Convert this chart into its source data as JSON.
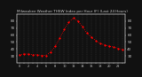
{
  "title": "Milwaukee Weather THSW Index per Hour (F) (Last 24 Hours)",
  "background_color": "#111111",
  "plot_background": "#111111",
  "line_color": "#ff0000",
  "grid_color": "#444444",
  "text_color": "#cccccc",
  "tick_label_color": "#cccccc",
  "hours": [
    0,
    1,
    2,
    3,
    4,
    5,
    6,
    7,
    8,
    9,
    10,
    11,
    12,
    13,
    14,
    15,
    16,
    17,
    18,
    19,
    20,
    21,
    22,
    23
  ],
  "values": [
    32,
    33,
    33,
    32,
    32,
    31,
    31,
    36,
    44,
    56,
    68,
    78,
    84,
    80,
    72,
    63,
    57,
    52,
    48,
    46,
    44,
    43,
    41,
    39
  ],
  "ylim_min": 20,
  "ylim_max": 90,
  "ytick_values": [
    30,
    40,
    50,
    60,
    70,
    80
  ],
  "ytick_right_values": [
    30,
    40,
    50,
    60,
    70,
    80
  ],
  "ylabel_fontsize": 3.0,
  "xlabel_fontsize": 2.5,
  "title_fontsize": 3.0,
  "marker_size": 1.2,
  "line_width": 0.6,
  "dpi": 100,
  "figw": 1.6,
  "figh": 0.87
}
